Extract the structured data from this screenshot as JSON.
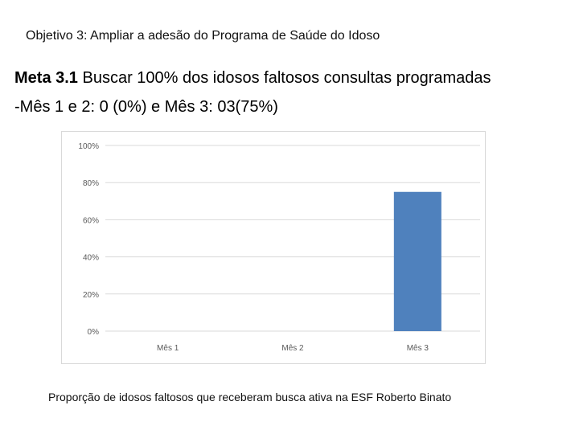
{
  "slide": {
    "objective": "Objetivo 3: Ampliar a adesão do Programa de Saúde do Idoso",
    "meta_label": "Meta 3.1",
    "meta_text": " Buscar 100% dos idosos faltosos consultas programadas",
    "meta_sub": "-Mês 1 e 2: 0 (0%) e Mês 3: 03(75%)",
    "caption": "Proporção de idosos faltosos que receberam busca ativa na ESF Roberto Binato"
  },
  "chart_data": {
    "type": "bar",
    "categories": [
      "Mês 1",
      "Mês 2",
      "Mês 3"
    ],
    "values": [
      0,
      0,
      75
    ],
    "unit": "%",
    "ylim": [
      0,
      100
    ],
    "yticks": [
      0,
      20,
      40,
      60,
      80,
      100
    ],
    "ytick_labels": [
      "0%",
      "20%",
      "40%",
      "60%",
      "80%",
      "100%"
    ],
    "grid": true,
    "legend": "none",
    "bar_color": "#4f81bd",
    "grid_color": "#d9d9d9",
    "title": "",
    "xlabel": "",
    "ylabel": ""
  }
}
